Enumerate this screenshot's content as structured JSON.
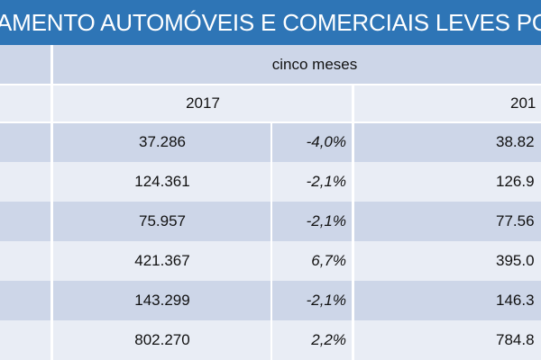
{
  "title": "AMENTO AUTOMÓVEIS E COMERCIAIS LEVES POR",
  "header": {
    "period": "cinco meses",
    "year_a": "2017",
    "year_b": "201"
  },
  "rows": [
    {
      "value_2017": "37.286",
      "variation": "-4,0%",
      "value_2016": "38.82"
    },
    {
      "value_2017": "124.361",
      "variation": "-2,1%",
      "value_2016": "126.9"
    },
    {
      "value_2017": "75.957",
      "variation": "-2,1%",
      "value_2016": "77.56"
    },
    {
      "value_2017": "421.367",
      "variation": "6,7%",
      "value_2016": "395.0"
    },
    {
      "value_2017": "143.299",
      "variation": "-2,1%",
      "value_2016": "146.3"
    },
    {
      "value_2017": "802.270",
      "variation": "2,2%",
      "value_2016": "784.8"
    }
  ],
  "colors": {
    "title_bg": "#2e75b6",
    "row_dark": "#cdd6e8",
    "row_light": "#e9edf5"
  }
}
